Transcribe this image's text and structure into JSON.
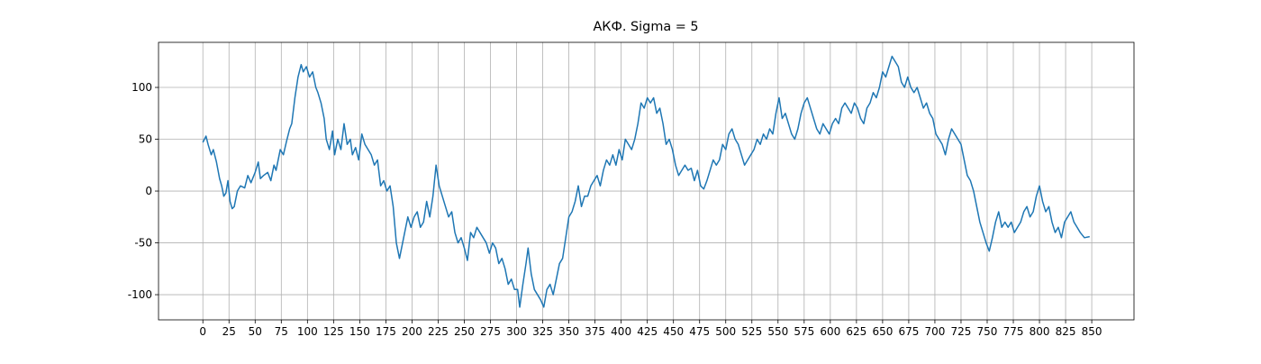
{
  "chart_data": {
    "type": "line",
    "title": "АКФ. Sigma = 5",
    "x": [
      0,
      3,
      5,
      8,
      10,
      13,
      16,
      18,
      20,
      22,
      24,
      26,
      28,
      30,
      33,
      36,
      40,
      43,
      46,
      50,
      53,
      55,
      58,
      62,
      65,
      68,
      70,
      74,
      77,
      80,
      83,
      85,
      88,
      91,
      94,
      96,
      99,
      102,
      105,
      108,
      110,
      113,
      116,
      118,
      121,
      124,
      126,
      129,
      132,
      135,
      138,
      141,
      143,
      146,
      149,
      152,
      155,
      158,
      161,
      164,
      167,
      170,
      173,
      176,
      179,
      182,
      185,
      188,
      190,
      193,
      196,
      199,
      202,
      205,
      208,
      211,
      214,
      217,
      220,
      223,
      226,
      229,
      232,
      235,
      238,
      241,
      244,
      247,
      250,
      253,
      256,
      259,
      262,
      265,
      268,
      271,
      274,
      277,
      280,
      283,
      286,
      289,
      292,
      295,
      298,
      301,
      303,
      306,
      309,
      311,
      314,
      317,
      320,
      323,
      326,
      329,
      332,
      335,
      338,
      341,
      344,
      347,
      350,
      353,
      356,
      359,
      362,
      365,
      368,
      371,
      374,
      377,
      380,
      383,
      386,
      389,
      392,
      395,
      398,
      401,
      404,
      407,
      410,
      413,
      416,
      419,
      422,
      425,
      428,
      431,
      434,
      437,
      440,
      443,
      446,
      449,
      452,
      455,
      458,
      461,
      464,
      467,
      470,
      473,
      476,
      479,
      482,
      485,
      488,
      491,
      494,
      497,
      500,
      503,
      506,
      509,
      512,
      515,
      518,
      521,
      524,
      527,
      530,
      533,
      536,
      539,
      542,
      545,
      548,
      551,
      554,
      557,
      560,
      563,
      566,
      569,
      572,
      575,
      578,
      581,
      584,
      587,
      590,
      593,
      596,
      599,
      602,
      605,
      608,
      611,
      614,
      617,
      620,
      623,
      626,
      629,
      632,
      635,
      638,
      641,
      644,
      647,
      650,
      653,
      656,
      659,
      662,
      665,
      668,
      671,
      674,
      677,
      680,
      683,
      686,
      689,
      692,
      695,
      698,
      701,
      704,
      707,
      710,
      713,
      716,
      719,
      722,
      725,
      728,
      731,
      734,
      737,
      740,
      743,
      746,
      749,
      752,
      755,
      758,
      761,
      764,
      767,
      770,
      773,
      776,
      779,
      782,
      785,
      788,
      791,
      794,
      797,
      800,
      803,
      806,
      809,
      812,
      815,
      818,
      821,
      824,
      827,
      830,
      833,
      836,
      839,
      843,
      848
    ],
    "series": [
      {
        "color": "#1f77b4",
        "values": [
          47,
          53,
          45,
          35,
          40,
          28,
          12,
          5,
          -5,
          -2,
          10,
          -10,
          -17,
          -15,
          0,
          5,
          3,
          15,
          8,
          18,
          28,
          12,
          15,
          18,
          10,
          25,
          20,
          40,
          35,
          48,
          60,
          65,
          90,
          110,
          122,
          115,
          120,
          110,
          115,
          100,
          95,
          85,
          70,
          50,
          40,
          58,
          35,
          50,
          40,
          65,
          45,
          50,
          35,
          42,
          30,
          55,
          45,
          40,
          35,
          25,
          30,
          5,
          10,
          0,
          5,
          -15,
          -50,
          -65,
          -55,
          -40,
          -25,
          -35,
          -25,
          -20,
          -35,
          -30,
          -10,
          -25,
          -5,
          25,
          5,
          -5,
          -15,
          -25,
          -20,
          -40,
          -50,
          -45,
          -55,
          -67,
          -40,
          -45,
          -35,
          -40,
          -45,
          -50,
          -60,
          -50,
          -55,
          -70,
          -65,
          -75,
          -90,
          -85,
          -95,
          -95,
          -112,
          -90,
          -70,
          -55,
          -80,
          -95,
          -100,
          -105,
          -112,
          -95,
          -90,
          -100,
          -85,
          -70,
          -65,
          -45,
          -25,
          -20,
          -10,
          5,
          -15,
          -5,
          -5,
          5,
          10,
          15,
          5,
          20,
          30,
          25,
          35,
          25,
          40,
          30,
          50,
          45,
          40,
          50,
          65,
          85,
          80,
          90,
          85,
          90,
          75,
          80,
          65,
          45,
          50,
          40,
          25,
          15,
          20,
          25,
          20,
          22,
          10,
          20,
          5,
          2,
          10,
          20,
          30,
          25,
          30,
          45,
          40,
          55,
          60,
          50,
          45,
          35,
          25,
          30,
          35,
          40,
          50,
          45,
          55,
          50,
          60,
          55,
          75,
          90,
          70,
          75,
          65,
          55,
          50,
          60,
          75,
          85,
          90,
          80,
          70,
          60,
          55,
          65,
          60,
          55,
          65,
          70,
          65,
          80,
          85,
          80,
          75,
          85,
          80,
          70,
          65,
          80,
          85,
          95,
          90,
          100,
          115,
          110,
          120,
          130,
          125,
          120,
          105,
          100,
          110,
          100,
          95,
          100,
          90,
          80,
          85,
          75,
          70,
          55,
          50,
          45,
          35,
          50,
          60,
          55,
          50,
          45,
          30,
          15,
          10,
          0,
          -15,
          -30,
          -40,
          -50,
          -58,
          -45,
          -30,
          -20,
          -35,
          -30,
          -35,
          -30,
          -40,
          -35,
          -30,
          -20,
          -15,
          -25,
          -20,
          -5,
          5,
          -10,
          -20,
          -15,
          -30,
          -40,
          -35,
          -45,
          -30,
          -25,
          -20,
          -30,
          -35,
          -40,
          -45,
          -44
        ]
      }
    ],
    "xlim": [
      -42.4,
      890.4
    ],
    "ylim": [
      -124.3,
      143.5
    ],
    "xticks": [
      0,
      25,
      50,
      75,
      100,
      125,
      150,
      175,
      200,
      225,
      250,
      275,
      300,
      325,
      350,
      375,
      400,
      425,
      450,
      475,
      500,
      525,
      550,
      575,
      600,
      625,
      650,
      675,
      700,
      725,
      750,
      775,
      800,
      825,
      850
    ],
    "yticks": [
      -100,
      -50,
      0,
      50,
      100
    ],
    "grid": true
  }
}
